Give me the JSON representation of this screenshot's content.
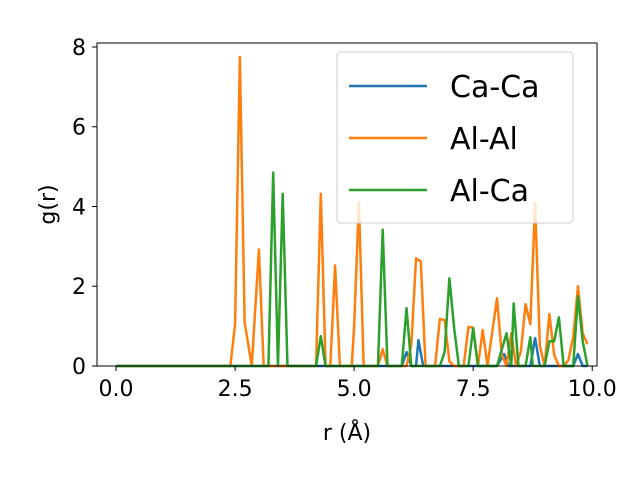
{
  "chart_data": {
    "type": "line",
    "xlabel": "r (Å)",
    "ylabel": "g(r)",
    "xlim": [
      -0.4,
      10.1
    ],
    "ylim": [
      0,
      8.1
    ],
    "x_ticks": [
      0.0,
      2.5,
      5.0,
      7.5,
      10.0
    ],
    "x_tick_labels": [
      "0.0",
      "2.5",
      "5.0",
      "7.5",
      "10.0"
    ],
    "y_ticks": [
      0,
      2,
      4,
      6,
      8
    ],
    "y_tick_labels": [
      "0",
      "2",
      "4",
      "6",
      "8"
    ],
    "grid": false,
    "legend_position": "top-right",
    "series": [
      {
        "name": "Ca-Ca",
        "color": "#1f77b4",
        "points": [
          [
            0,
            0
          ],
          [
            6.0,
            0
          ],
          [
            6.1,
            0.35
          ],
          [
            6.2,
            0
          ],
          [
            6.3,
            0
          ],
          [
            6.35,
            0.65
          ],
          [
            6.45,
            0
          ],
          [
            8.0,
            0
          ],
          [
            8.15,
            0.3
          ],
          [
            8.25,
            0
          ],
          [
            8.7,
            0
          ],
          [
            8.8,
            0.7
          ],
          [
            8.9,
            0
          ],
          [
            9.6,
            0
          ],
          [
            9.7,
            0.3
          ],
          [
            9.8,
            0
          ],
          [
            9.9,
            0
          ]
        ]
      },
      {
        "name": "Al-Al",
        "color": "#ff7f0e",
        "points": [
          [
            0,
            0
          ],
          [
            2.4,
            0
          ],
          [
            2.5,
            1.05
          ],
          [
            2.6,
            7.75
          ],
          [
            2.7,
            1.1
          ],
          [
            2.85,
            0
          ],
          [
            3.0,
            2.92
          ],
          [
            3.1,
            0
          ],
          [
            4.2,
            0
          ],
          [
            4.3,
            4.32
          ],
          [
            4.4,
            0
          ],
          [
            4.5,
            0
          ],
          [
            4.6,
            2.52
          ],
          [
            4.7,
            0
          ],
          [
            4.95,
            0
          ],
          [
            5.0,
            1.0
          ],
          [
            5.1,
            4.1
          ],
          [
            5.2,
            0
          ],
          [
            5.5,
            0
          ],
          [
            5.6,
            0.42
          ],
          [
            5.7,
            0
          ],
          [
            6.1,
            0
          ],
          [
            6.2,
            0.52
          ],
          [
            6.3,
            2.7
          ],
          [
            6.4,
            2.62
          ],
          [
            6.5,
            0
          ],
          [
            6.6,
            0
          ],
          [
            6.7,
            0
          ],
          [
            6.8,
            1.18
          ],
          [
            6.9,
            1.15
          ],
          [
            7.0,
            0.12
          ],
          [
            7.1,
            0
          ],
          [
            7.3,
            0
          ],
          [
            7.4,
            0.98
          ],
          [
            7.5,
            0.96
          ],
          [
            7.6,
            0
          ],
          [
            7.7,
            0.9
          ],
          [
            7.8,
            0
          ],
          [
            8.0,
            1.7
          ],
          [
            8.1,
            0.28
          ],
          [
            8.2,
            0
          ],
          [
            8.3,
            0.82
          ],
          [
            8.4,
            0
          ],
          [
            8.5,
            0.36
          ],
          [
            8.6,
            1.55
          ],
          [
            8.7,
            1.05
          ],
          [
            8.8,
            4.08
          ],
          [
            8.9,
            0.5
          ],
          [
            9.0,
            0
          ],
          [
            9.1,
            1.3
          ],
          [
            9.2,
            0.28
          ],
          [
            9.3,
            0
          ],
          [
            9.4,
            0
          ],
          [
            9.5,
            0.15
          ],
          [
            9.6,
            0.72
          ],
          [
            9.7,
            2.0
          ],
          [
            9.8,
            0.82
          ],
          [
            9.9,
            0.55
          ]
        ]
      },
      {
        "name": "Al-Ca",
        "color": "#2ca02c",
        "points": [
          [
            0,
            0
          ],
          [
            3.2,
            0
          ],
          [
            3.3,
            4.85
          ],
          [
            3.4,
            0
          ],
          [
            3.5,
            4.32
          ],
          [
            3.6,
            0
          ],
          [
            4.2,
            0
          ],
          [
            4.3,
            0.75
          ],
          [
            4.4,
            0
          ],
          [
            5.5,
            0
          ],
          [
            5.6,
            3.42
          ],
          [
            5.7,
            0
          ],
          [
            6.0,
            0
          ],
          [
            6.1,
            1.45
          ],
          [
            6.2,
            0
          ],
          [
            6.8,
            0
          ],
          [
            6.9,
            0.35
          ],
          [
            7.0,
            2.2
          ],
          [
            7.1,
            0.95
          ],
          [
            7.2,
            0
          ],
          [
            7.4,
            0
          ],
          [
            7.5,
            0.95
          ],
          [
            7.6,
            0
          ],
          [
            8.0,
            0
          ],
          [
            8.2,
            0.82
          ],
          [
            8.3,
            0
          ],
          [
            8.35,
            1.57
          ],
          [
            8.45,
            0
          ],
          [
            8.6,
            0
          ],
          [
            8.7,
            0.72
          ],
          [
            8.75,
            0
          ],
          [
            9.0,
            0
          ],
          [
            9.1,
            0.62
          ],
          [
            9.2,
            0.62
          ],
          [
            9.3,
            1.22
          ],
          [
            9.4,
            0
          ],
          [
            9.6,
            0
          ],
          [
            9.7,
            1.75
          ],
          [
            9.8,
            0.62
          ],
          [
            9.9,
            0
          ]
        ]
      }
    ]
  }
}
